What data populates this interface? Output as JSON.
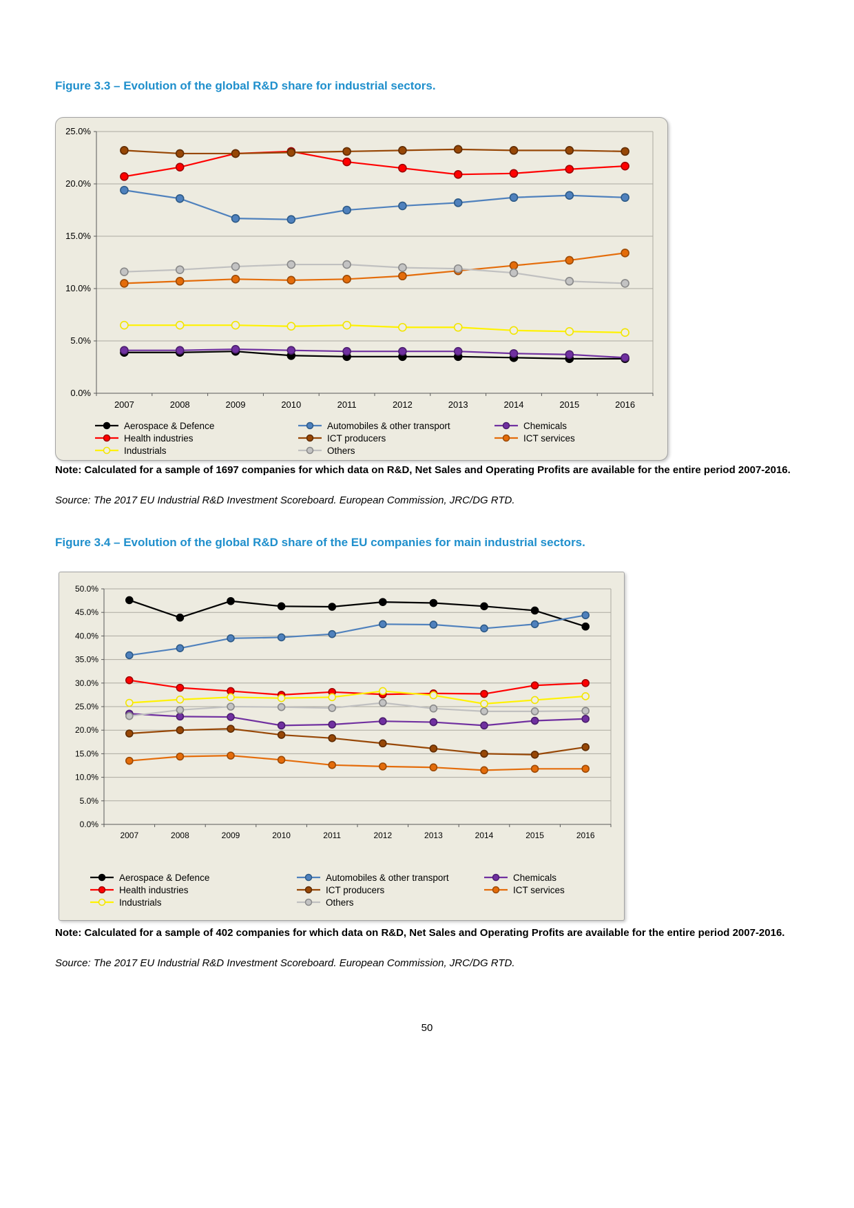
{
  "colors": {
    "heading_blue": "#1F8FCC",
    "chart_background": "#EDEBE0"
  },
  "page_number": "50",
  "figures": [
    {
      "title": "Figure 3.3 – Evolution of the global R&D share for industrial sectors.",
      "note": "Note: Calculated for a sample of 1697 companies for which data on R&D, Net Sales and Operating Profits are available for the entire period 2007-2016.",
      "source": "Source: The 2017 EU Industrial R&D Investment Scoreboard. European Commission, JRC/DG RTD."
    },
    {
      "title": "Figure 3.4 – Evolution of the global R&D share of the EU companies for main industrial sectors.",
      "note": "Note: Calculated for a sample of 402 companies for which data on R&D, Net Sales and Operating Profits are available for the entire period 2007-2016.",
      "source": "Source: The 2017 EU Industrial R&D Investment Scoreboard. European Commission, JRC/DG RTD."
    }
  ],
  "chart_data": [
    {
      "type": "line",
      "title": "Evolution of the global R&D share for industrial sectors",
      "x": [
        "2007",
        "2008",
        "2009",
        "2010",
        "2011",
        "2012",
        "2013",
        "2014",
        "2015",
        "2016"
      ],
      "ylim": [
        0,
        25
      ],
      "ytick_step": 5,
      "ytick_suffix": "%",
      "grid": true,
      "legend_position": "bottom",
      "series": [
        {
          "name": "Aerospace & Defence",
          "color": "#000000",
          "marker_fill": "#000000",
          "marker_edge": "#000000",
          "values": [
            3.9,
            3.9,
            4.0,
            3.6,
            3.5,
            3.5,
            3.5,
            3.4,
            3.3,
            3.3
          ]
        },
        {
          "name": "Automobiles & other transport",
          "color": "#4F81BD",
          "marker_fill": "#4F81BD",
          "marker_edge": "#2D5A87",
          "values": [
            19.4,
            18.6,
            16.7,
            16.6,
            17.5,
            17.9,
            18.2,
            18.7,
            18.9,
            18.7
          ]
        },
        {
          "name": "Chemicals",
          "color": "#7030A0",
          "marker_fill": "#7030A0",
          "marker_edge": "#4B1E6E",
          "values": [
            4.1,
            4.1,
            4.2,
            4.1,
            4.0,
            4.0,
            4.0,
            3.8,
            3.7,
            3.4
          ]
        },
        {
          "name": "Health industries",
          "color": "#FF0000",
          "marker_fill": "#FF0000",
          "marker_edge": "#A00000",
          "values": [
            20.7,
            21.6,
            22.9,
            23.1,
            22.1,
            21.5,
            20.9,
            21.0,
            21.4,
            21.7
          ]
        },
        {
          "name": "ICT producers",
          "color": "#974706",
          "marker_fill": "#974706",
          "marker_edge": "#5F2C03",
          "values": [
            23.2,
            22.9,
            22.9,
            23.0,
            23.1,
            23.2,
            23.3,
            23.2,
            23.2,
            23.1
          ]
        },
        {
          "name": "ICT services",
          "color": "#E46C0A",
          "marker_fill": "#E46C0A",
          "marker_edge": "#9C4A06",
          "values": [
            10.5,
            10.7,
            10.9,
            10.8,
            10.9,
            11.2,
            11.7,
            12.2,
            12.7,
            13.4
          ]
        },
        {
          "name": "Industrials",
          "color": "#FFF200",
          "marker_fill": "#EFEDE2",
          "marker_edge": "#F2E500",
          "values": [
            6.5,
            6.5,
            6.5,
            6.4,
            6.5,
            6.3,
            6.3,
            6.0,
            5.9,
            5.8
          ]
        },
        {
          "name": "Others",
          "color": "#C0C0C0",
          "marker_fill": "#C3C3C3",
          "marker_edge": "#898989",
          "values": [
            11.6,
            11.8,
            12.1,
            12.3,
            12.3,
            12.0,
            11.9,
            11.5,
            10.7,
            10.5
          ]
        }
      ]
    },
    {
      "type": "line",
      "title": "Evolution of the global R&D share of the EU companies for main industrial sectors",
      "x": [
        "2007",
        "2008",
        "2009",
        "2010",
        "2011",
        "2012",
        "2013",
        "2014",
        "2015",
        "2016"
      ],
      "ylim": [
        0,
        50
      ],
      "ytick_step": 5,
      "ytick_suffix": "%",
      "grid": true,
      "legend_position": "bottom",
      "series": [
        {
          "name": "Aerospace & Defence",
          "color": "#000000",
          "marker_fill": "#000000",
          "marker_edge": "#000000",
          "values": [
            47.6,
            43.9,
            47.4,
            46.3,
            46.2,
            47.2,
            47.0,
            46.3,
            45.4,
            42.0
          ]
        },
        {
          "name": "Automobiles & other transport",
          "color": "#4F81BD",
          "marker_fill": "#4F81BD",
          "marker_edge": "#2D5A87",
          "values": [
            35.9,
            37.4,
            39.5,
            39.7,
            40.4,
            42.5,
            42.4,
            41.6,
            42.5,
            44.4
          ]
        },
        {
          "name": "Chemicals",
          "color": "#7030A0",
          "marker_fill": "#7030A0",
          "marker_edge": "#4B1E6E",
          "values": [
            23.5,
            22.9,
            22.8,
            21.0,
            21.2,
            21.9,
            21.7,
            21.0,
            22.0,
            22.4
          ]
        },
        {
          "name": "Health industries",
          "color": "#FF0000",
          "marker_fill": "#FF0000",
          "marker_edge": "#A00000",
          "values": [
            30.6,
            29.0,
            28.3,
            27.5,
            28.1,
            27.6,
            27.8,
            27.7,
            29.5,
            30.0
          ]
        },
        {
          "name": "ICT producers",
          "color": "#974706",
          "marker_fill": "#974706",
          "marker_edge": "#5F2C03",
          "values": [
            19.3,
            20.0,
            20.3,
            19.0,
            18.3,
            17.2,
            16.1,
            15.0,
            14.8,
            16.4
          ]
        },
        {
          "name": "ICT services",
          "color": "#E46C0A",
          "marker_fill": "#E46C0A",
          "marker_edge": "#9C4A06",
          "values": [
            13.5,
            14.4,
            14.6,
            13.7,
            12.6,
            12.3,
            12.1,
            11.5,
            11.8,
            11.8
          ]
        },
        {
          "name": "Industrials",
          "color": "#FFF200",
          "marker_fill": "#EFEDE2",
          "marker_edge": "#F2E500",
          "values": [
            25.8,
            26.5,
            27.0,
            26.8,
            27.0,
            28.3,
            27.4,
            25.6,
            26.4,
            27.2
          ]
        },
        {
          "name": "Others",
          "color": "#C0C0C0",
          "marker_fill": "#C3C3C3",
          "marker_edge": "#898989",
          "values": [
            23.0,
            24.3,
            25.0,
            24.9,
            24.7,
            25.8,
            24.6,
            24.0,
            24.0,
            24.1
          ]
        }
      ]
    }
  ]
}
